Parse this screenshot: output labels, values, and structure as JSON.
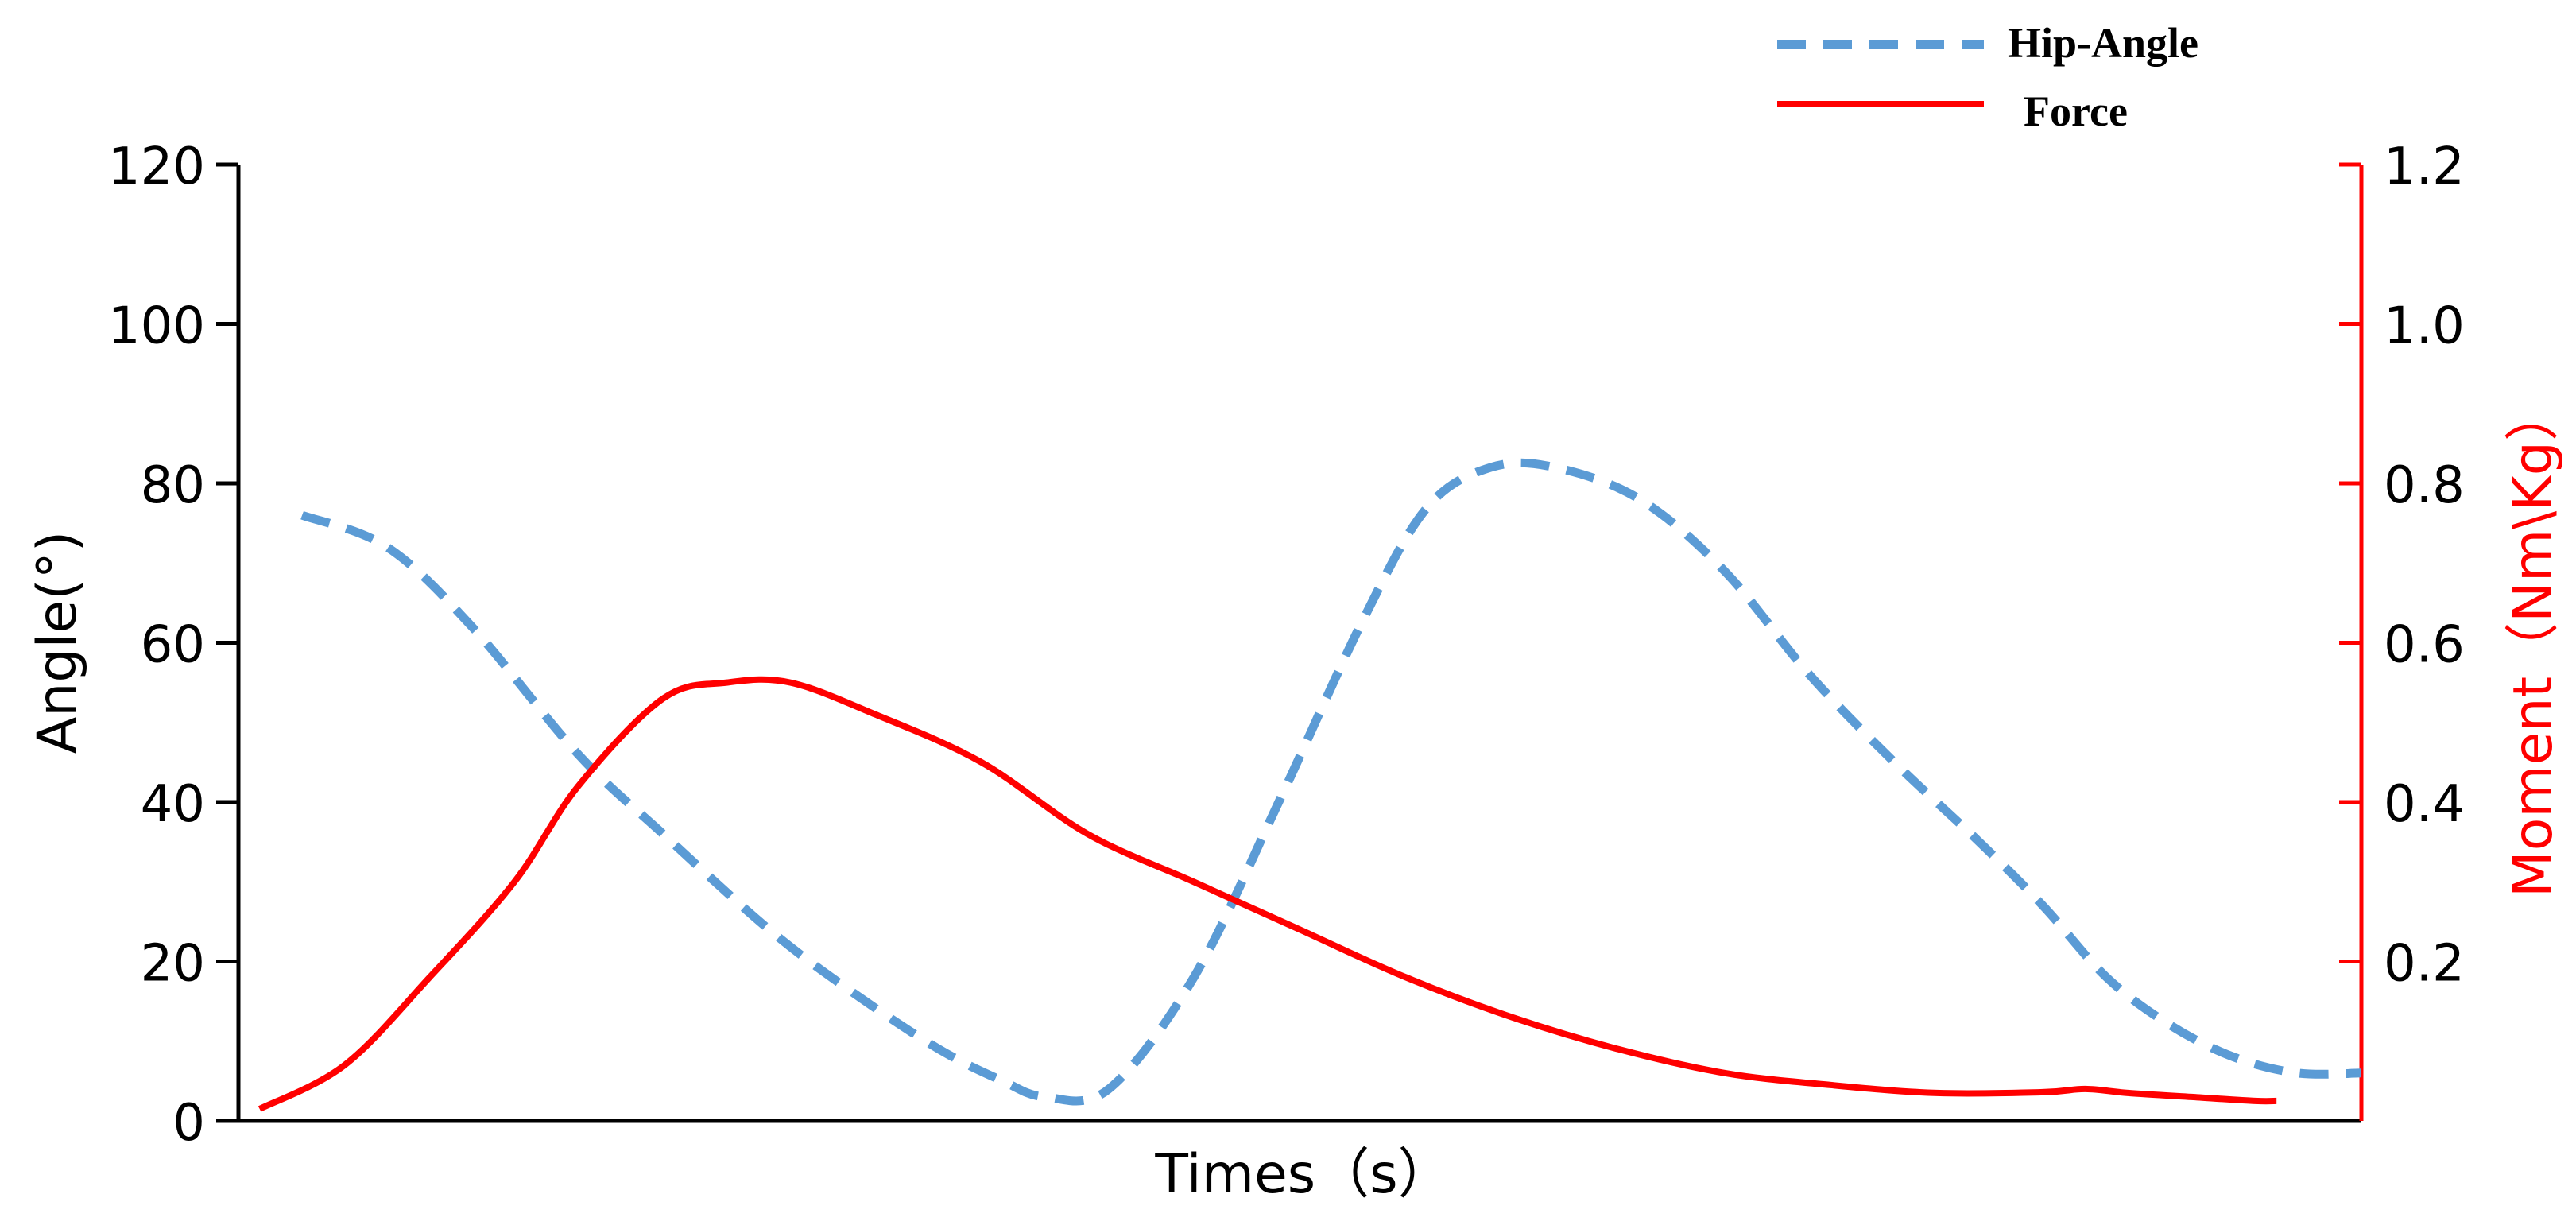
{
  "chart_data": {
    "type": "line",
    "title": "",
    "xlabel": "Times（s）",
    "ylabel_left": "Angle(°)",
    "ylabel_right": "Moment（Nm\\Kg）",
    "ylim_left": [
      0,
      120
    ],
    "ylim_right": [
      0,
      1.2
    ],
    "xlim": [
      0,
      100
    ],
    "left_ticks": [
      "0",
      "20",
      "40",
      "60",
      "80",
      "100",
      "120"
    ],
    "right_ticks": [
      "0.2",
      "0.4",
      "0.6",
      "0.8",
      "1.0",
      "1.2"
    ],
    "grid": false,
    "legend_position": "top-right",
    "series": [
      {
        "name": "Hip-Angle",
        "axis": "left",
        "style": "dashed",
        "color": "#5b9bd5",
        "x": [
          3,
          7,
          11,
          16,
          20,
          25,
          29,
          33,
          36,
          38,
          41,
          45,
          49,
          53,
          56,
          59,
          62,
          66,
          70,
          74,
          78,
          82,
          85,
          88,
          91,
          94,
          97,
          100
        ],
        "y": [
          76,
          72,
          62,
          46,
          36,
          24,
          16,
          9,
          5,
          3,
          4,
          18,
          40,
          63,
          77,
          82,
          82,
          78,
          69,
          56,
          45,
          35,
          27,
          18,
          12,
          8,
          6,
          6
        ]
      },
      {
        "name": "Force",
        "axis": "right",
        "style": "solid",
        "color": "#ff0000",
        "x": [
          1,
          5,
          9,
          13,
          16,
          20,
          23,
          26,
          30,
          35,
          40,
          45,
          50,
          55,
          60,
          65,
          70,
          75,
          80,
          85,
          87,
          89,
          92,
          95,
          96
        ],
        "y": [
          0.015,
          0.07,
          0.18,
          0.3,
          0.42,
          0.53,
          0.55,
          0.55,
          0.51,
          0.45,
          0.36,
          0.3,
          0.24,
          0.18,
          0.13,
          0.09,
          0.06,
          0.045,
          0.035,
          0.036,
          0.04,
          0.035,
          0.03,
          0.025,
          0.025
        ]
      }
    ]
  }
}
